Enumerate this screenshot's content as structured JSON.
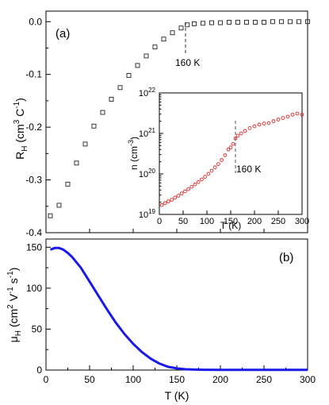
{
  "chart_data": [
    {
      "panel": "(a)",
      "type": "scatter",
      "ylabel_main": "R",
      "ylabel_sub": "H",
      "ylabel_rest": " (cm",
      "ylabel_exp1": "3",
      "ylabel_mid": " C",
      "ylabel_exp2": "-1",
      "ylabel_end": ")",
      "xlim": [
        0,
        300
      ],
      "ylim": [
        -0.4,
        0.02
      ],
      "yticks": [
        "0.0",
        "-0.1",
        "-0.2",
        "-0.3",
        "-0.4"
      ],
      "annotation": "160 K",
      "annotation_x": 160,
      "marker": "open square",
      "color": "#222222",
      "series": [
        {
          "x": [
            5,
            15,
            25,
            35,
            45,
            55,
            65,
            75,
            85,
            95,
            105,
            115,
            125,
            135,
            145,
            155,
            162,
            170,
            180,
            190,
            200,
            210,
            220,
            230,
            240,
            250,
            260,
            270,
            280,
            290,
            300
          ],
          "y": [
            -0.368,
            -0.348,
            -0.308,
            -0.268,
            -0.232,
            -0.198,
            -0.172,
            -0.147,
            -0.125,
            -0.102,
            -0.083,
            -0.065,
            -0.048,
            -0.033,
            -0.021,
            -0.012,
            -0.006,
            -0.004,
            -0.003,
            -0.002,
            -0.002,
            -0.001,
            -0.001,
            -0.001,
            -0.001,
            -0.001,
            0.0,
            0.0,
            0.0,
            0.0,
            0.0
          ]
        }
      ]
    },
    {
      "panel": "inset",
      "type": "scatter",
      "xlabel": "T (K)",
      "ylabel_main": "n (cm",
      "ylabel_exp": "-3",
      "ylabel_end": ")",
      "xlim": [
        0,
        300
      ],
      "ylim_log10": [
        19,
        22
      ],
      "log_y": true,
      "xticks": [
        "0",
        "50",
        "100",
        "150",
        "200",
        "250",
        "300"
      ],
      "ytick_base": "10",
      "ytick_exps": [
        "22",
        "21",
        "20",
        "19"
      ],
      "annotation": "160 K",
      "annotation_x": 160,
      "marker": "open circle",
      "color": "#dd2222",
      "series": [
        {
          "x": [
            5,
            12,
            19,
            26,
            33,
            40,
            47,
            54,
            61,
            68,
            75,
            82,
            89,
            96,
            103,
            110,
            117,
            124,
            131,
            138,
            145,
            150,
            155,
            160,
            165,
            172,
            180,
            190,
            200,
            210,
            220,
            230,
            240,
            250,
            260,
            270,
            280,
            290,
            300
          ],
          "y": [
            1.7e+19,
            1.9e+19,
            2.1e+19,
            2.3e+19,
            2.6e+19,
            2.9e+19,
            3.3e+19,
            3.7e+19,
            4.2e+19,
            4.8e+19,
            5.5e+19,
            6.3e+19,
            7.3e+19,
            8.5e+19,
            1e+20,
            1.2e+20,
            1.45e+20,
            1.75e+20,
            2.2e+20,
            2.9e+20,
            4e+20,
            4.5e+20,
            5.5e+20,
            7.5e+20,
            8.8e+20,
            1e+21,
            1.15e+21,
            1.35e+21,
            1.5e+21,
            1.65e+21,
            1.75e+21,
            1.8e+21,
            2e+21,
            2.2e+21,
            2.4e+21,
            2.6e+21,
            2.9e+21,
            3.1e+21,
            2.9e+21
          ]
        }
      ]
    },
    {
      "panel": "(b)",
      "type": "line",
      "xlabel": "T (K)",
      "ylabel_main": "μ",
      "ylabel_sub": "H",
      "ylabel_rest": " (cm",
      "ylabel_exp1": "2",
      "ylabel_mid1": " V",
      "ylabel_exp2": "-1",
      "ylabel_mid2": " s",
      "ylabel_exp3": "-1",
      "ylabel_end": ")",
      "xlim": [
        0,
        300
      ],
      "ylim": [
        0,
        160
      ],
      "xticks": [
        "0",
        "50",
        "100",
        "150",
        "200",
        "250",
        "300"
      ],
      "yticks": [
        "0",
        "50",
        "100",
        "150"
      ],
      "color": "#1a1ae6",
      "series": [
        {
          "x": [
            5,
            10,
            15,
            20,
            25,
            30,
            40,
            50,
            60,
            70,
            80,
            90,
            100,
            110,
            120,
            130,
            140,
            150,
            160,
            170,
            180,
            200,
            250,
            300
          ],
          "y": [
            147,
            149,
            149,
            147,
            143,
            138,
            125,
            108,
            91,
            74,
            58,
            44,
            32,
            22,
            14,
            8,
            4,
            2,
            1,
            0.6,
            0.4,
            0.3,
            0.2,
            0.2
          ]
        }
      ]
    }
  ]
}
